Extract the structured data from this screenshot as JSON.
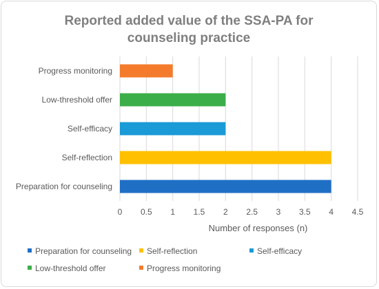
{
  "chart_data": {
    "type": "bar",
    "orientation": "horizontal",
    "title": "Reported added value of the SSA-PA for counseling practice",
    "title_lines": [
      "Reported added value of the SSA-PA for",
      "counseling practice"
    ],
    "xlabel": "Number of responses (n)",
    "ylabel": "",
    "xlim": [
      0,
      4.5
    ],
    "x_ticks": [
      "0",
      "0.5",
      "1",
      "1.5",
      "2",
      "2.5",
      "3",
      "3.5",
      "4",
      "4.5"
    ],
    "grid": "vertical gridlines",
    "legend_position": "bottom",
    "categories": [
      "Preparation for counseling",
      "Self-reflection",
      "Self-efficacy",
      "Low-threshold offer",
      "Progress monitoring"
    ],
    "values": [
      4,
      4,
      2,
      2,
      1
    ],
    "colors": [
      "#1f6fc5",
      "#ffc000",
      "#1a9ad6",
      "#3cae49",
      "#f47b2c"
    ],
    "legend": [
      "Preparation for counseling",
      "Self-reflection",
      "Self-efficacy",
      "Low-threshold offer",
      "Progress monitoring"
    ]
  }
}
